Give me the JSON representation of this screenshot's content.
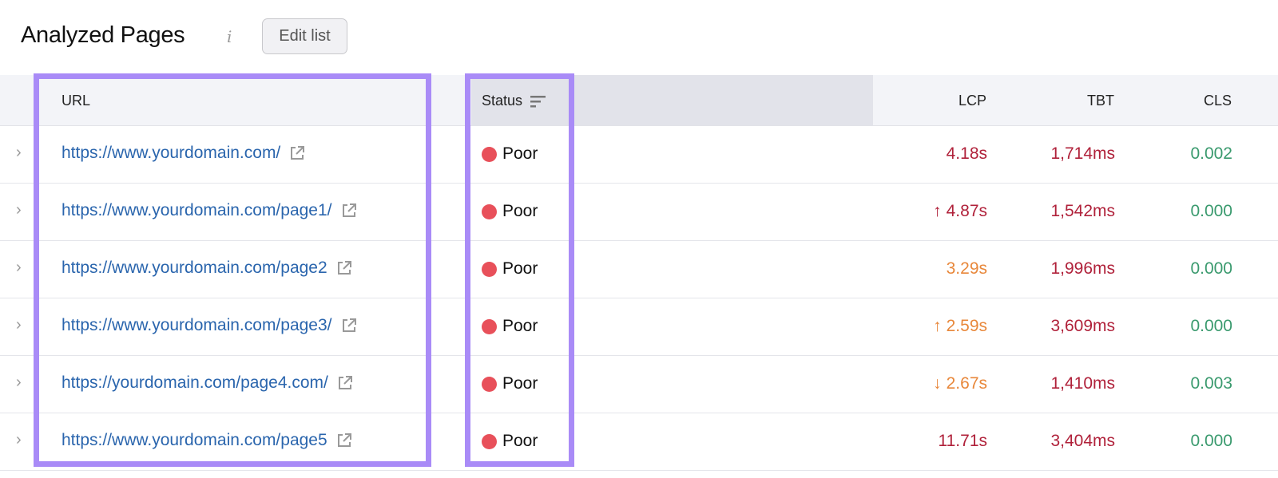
{
  "header": {
    "title": "Analyzed Pages",
    "info_icon": "i",
    "edit_button": "Edit list"
  },
  "columns": {
    "url": "URL",
    "status": "Status",
    "lcp": "LCP",
    "tbt": "TBT",
    "cls": "CLS"
  },
  "colors": {
    "poor": "#b0213a",
    "needs_improvement": "#e8873a",
    "good": "#3a9a6e",
    "highlight": "#a98bf7",
    "link": "#2a65ad",
    "status_dot": "#e8505a"
  },
  "rows": [
    {
      "url": "https://www.yourdomain.com/",
      "status": "Poor",
      "lcp": "4.18s",
      "lcp_trend": "",
      "lcp_color": "#b0213a",
      "tbt": "1,714ms",
      "cls": "0.002"
    },
    {
      "url": "https://www.yourdomain.com/page1/",
      "status": "Poor",
      "lcp": "4.87s",
      "lcp_trend": "↑",
      "lcp_color": "#b0213a",
      "tbt": "1,542ms",
      "cls": "0.000"
    },
    {
      "url": "https://www.yourdomain.com/page2",
      "status": "Poor",
      "lcp": "3.29s",
      "lcp_trend": "",
      "lcp_color": "#e8873a",
      "tbt": "1,996ms",
      "cls": "0.000"
    },
    {
      "url": "https://www.yourdomain.com/page3/",
      "status": "Poor",
      "lcp": "2.59s",
      "lcp_trend": "↑",
      "lcp_color": "#e8873a",
      "tbt": "3,609ms",
      "cls": "0.000"
    },
    {
      "url": "https://yourdomain.com/page4.com/",
      "status": "Poor",
      "lcp": "2.67s",
      "lcp_trend": "↓",
      "lcp_color": "#e8873a",
      "tbt": "1,410ms",
      "cls": "0.003"
    },
    {
      "url": "https://www.yourdomain.com/page5",
      "status": "Poor",
      "lcp": "11.71s",
      "lcp_trend": "",
      "lcp_color": "#b0213a",
      "tbt": "3,404ms",
      "cls": "0.000"
    }
  ]
}
